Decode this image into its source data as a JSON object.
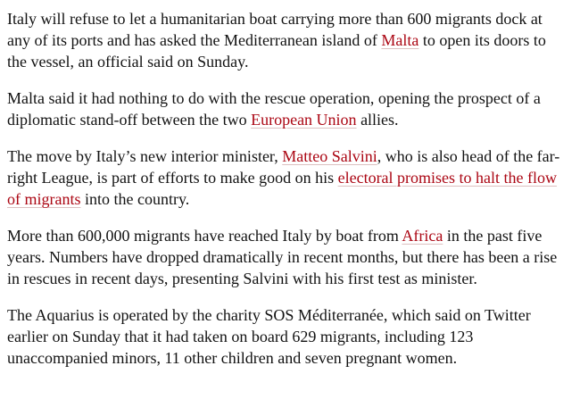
{
  "article": {
    "paragraphs": [
      {
        "parts": [
          {
            "text": "Italy will refuse to let a humanitarian boat carrying more than 600 migrants dock at any of its ports and has asked the Mediterranean island of ",
            "link": false
          },
          {
            "text": "Malta",
            "link": true
          },
          {
            "text": " to open its doors to the vessel, an official said on Sunday.",
            "link": false
          }
        ]
      },
      {
        "parts": [
          {
            "text": "Malta said it had nothing to do with the rescue operation, opening the prospect of a diplomatic stand-off between the two ",
            "link": false
          },
          {
            "text": "European Union",
            "link": true
          },
          {
            "text": " allies.",
            "link": false
          }
        ]
      },
      {
        "parts": [
          {
            "text": "The move by Italy’s new interior minister, ",
            "link": false
          },
          {
            "text": "Matteo Salvini",
            "link": true
          },
          {
            "text": ", who is also head of the far-right League, is part of efforts to make good on his ",
            "link": false
          },
          {
            "text": "electoral promises to halt the flow of migrants",
            "link": true
          },
          {
            "text": " into the country.",
            "link": false
          }
        ]
      },
      {
        "parts": [
          {
            "text": "More than 600,000 migrants have reached Italy by boat from ",
            "link": false
          },
          {
            "text": "Africa",
            "link": true
          },
          {
            "text": " in the past five years. Numbers have dropped dramatically in recent months, but there has been a rise in rescues in recent days, presenting Salvini with his first test as minister.",
            "link": false
          }
        ]
      },
      {
        "parts": [
          {
            "text": "The Aquarius is operated by the charity SOS Méditerranée, which said on Twitter earlier on Sunday that it had taken on board 629 migrants, including 123 unaccompanied minors, 11 other children and seven pregnant women.",
            "link": false
          }
        ]
      }
    ]
  }
}
